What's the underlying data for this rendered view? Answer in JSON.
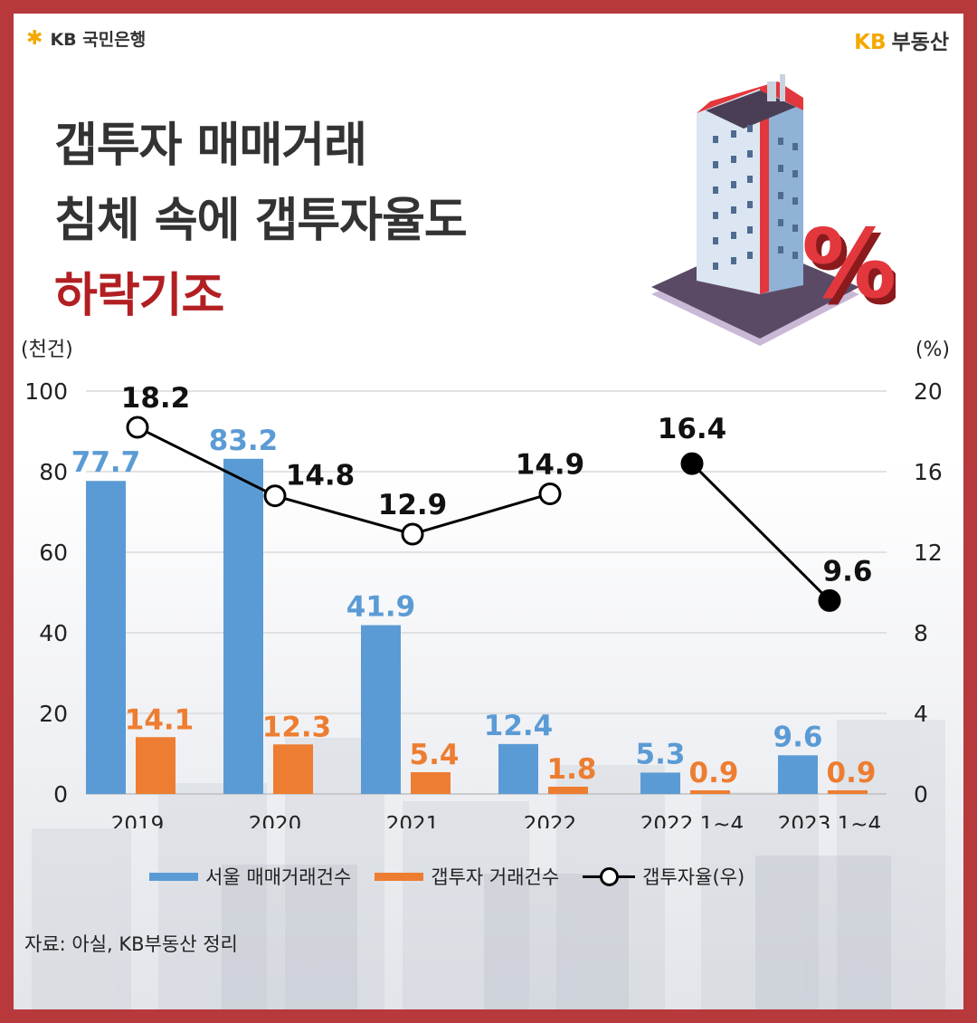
{
  "branding": {
    "left_logo": "KB 국민은행",
    "right_logo_kb": "KB",
    "right_logo_name": "부동산"
  },
  "title": {
    "line1": "갭투자 매매거래",
    "line2": "침체 속에 갭투자율도",
    "line3": "하락기조"
  },
  "source": "자료: 아실, KB부동산 정리",
  "colors": {
    "seoul_bar": "#5b9bd5",
    "gap_bar": "#ed7d31",
    "ratio_line": "#000000",
    "title_highlight": "#b21f22"
  },
  "chart_data": {
    "type": "bar",
    "categories": [
      "2019",
      "2020",
      "2021",
      "2022",
      "2022.1~4",
      "2023.1~4"
    ],
    "left_axis_unit": "(천건)",
    "right_axis_unit": "(%)",
    "ylim": [
      0,
      100
    ],
    "y2lim": [
      0,
      20
    ],
    "yticks": [
      "0",
      "20",
      "40",
      "60",
      "80",
      "100"
    ],
    "y2ticks": [
      "0",
      "4",
      "8",
      "12",
      "16",
      "20"
    ],
    "grid": true,
    "legend_position": "bottom",
    "series": [
      {
        "name": "서울 매매거래건수",
        "type": "bar",
        "axis": "left",
        "values": [
          77.7,
          83.2,
          41.9,
          12.4,
          5.3,
          9.6
        ],
        "labels": [
          "77.7",
          "83.2",
          "41.9",
          "12.4",
          "5.3",
          "9.6"
        ]
      },
      {
        "name": "갭투자 거래건수",
        "type": "bar",
        "axis": "left",
        "values": [
          14.1,
          12.3,
          5.4,
          1.8,
          0.9,
          0.9
        ],
        "labels": [
          "14.1",
          "12.3",
          "5.4",
          "1.8",
          "0.9",
          "0.9"
        ]
      },
      {
        "name": "갭투자율(우)",
        "type": "line",
        "axis": "right",
        "values": [
          18.2,
          14.8,
          12.9,
          14.9,
          16.4,
          9.6
        ],
        "labels": [
          "18.2",
          "14.8",
          "12.9",
          "14.9",
          "16.4",
          "9.6"
        ],
        "filled": [
          false,
          false,
          false,
          false,
          true,
          true
        ],
        "segments": [
          [
            0,
            3
          ],
          [
            4,
            5
          ]
        ]
      }
    ]
  }
}
